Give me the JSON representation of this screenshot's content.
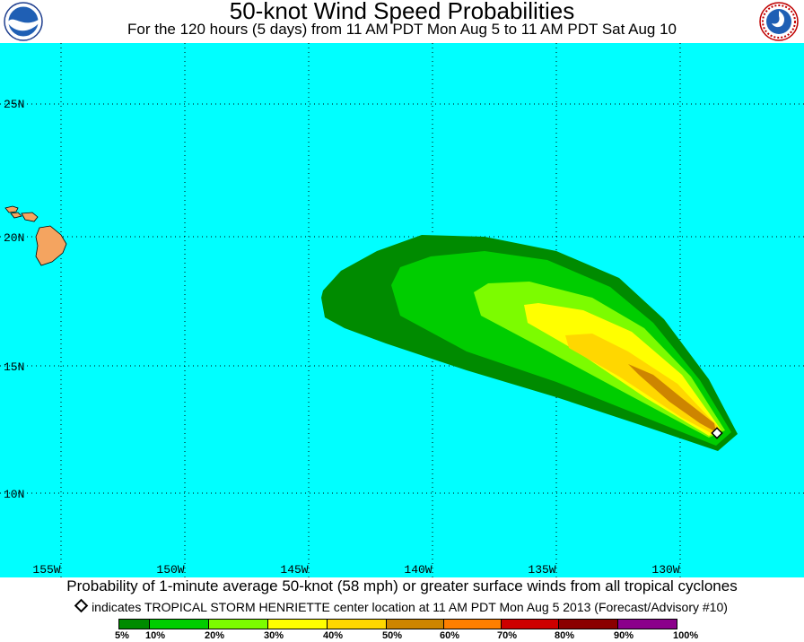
{
  "header": {
    "title": "50-knot Wind Speed Probabilities",
    "subtitle": "For the 120 hours (5 days) from 11 AM PDT Mon Aug 5 to 11 AM PDT Sat Aug 10",
    "left_logo_text": "NOAA",
    "right_logo_text": "NATIONAL WEATHER SERVICE"
  },
  "map": {
    "lat_labels": [
      "25N",
      "20N",
      "15N",
      "10N"
    ],
    "lon_labels": [
      "155W",
      "150W",
      "145W",
      "140W",
      "135W",
      "130W"
    ],
    "ocean_color": "#00ffff",
    "land_color": "#f4a460"
  },
  "footer": {
    "caption": "Probability of 1-minute average 50-knot (58 mph) or greater surface winds from all tropical cyclones",
    "note": "indicates TROPICAL STORM HENRIETTE center location at 11 AM PDT Mon Aug 5 2013 (Forecast/Advisory #10)",
    "note_icon": "diamond-icon"
  },
  "legend": {
    "labels": [
      "5%",
      "10%",
      "20%",
      "30%",
      "40%",
      "50%",
      "60%",
      "70%",
      "80%",
      "90%",
      "100%"
    ],
    "colors": [
      "#008b00",
      "#00cd00",
      "#7cfc00",
      "#ffff00",
      "#ffd700",
      "#cd8500",
      "#ff7f00",
      "#cd0000",
      "#8b0000",
      "#8b008b"
    ]
  }
}
